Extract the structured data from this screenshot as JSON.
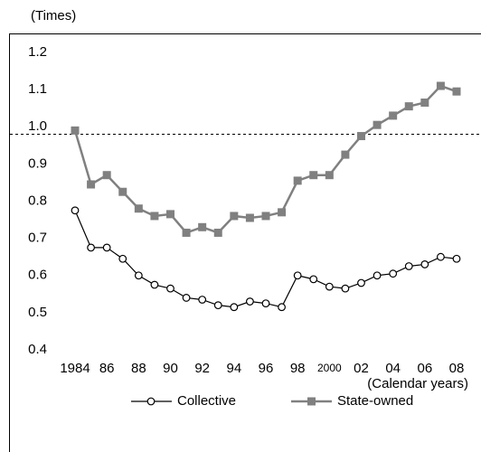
{
  "chart_data": {
    "type": "line",
    "y_label": "(Times)",
    "x_label": "(Calendar years)",
    "categories": [
      "1984",
      null,
      "86",
      null,
      "88",
      null,
      "90",
      null,
      "92",
      null,
      "94",
      null,
      "96",
      null,
      "98",
      null,
      "2000",
      null,
      "02",
      null,
      "04",
      null,
      "06",
      null,
      "08"
    ],
    "series": [
      {
        "name": "Collective",
        "color": "#000000",
        "marker": "circle",
        "values": [
          0.775,
          0.675,
          0.675,
          0.645,
          0.6,
          0.575,
          0.565,
          0.54,
          0.535,
          0.52,
          0.515,
          0.53,
          0.525,
          0.515,
          0.6,
          0.59,
          0.57,
          0.565,
          0.58,
          0.6,
          0.605,
          0.625,
          0.63,
          0.65,
          0.645
        ]
      },
      {
        "name": "State-owned",
        "color": "#808080",
        "marker": "square",
        "values": [
          0.99,
          0.845,
          0.87,
          0.825,
          0.78,
          0.76,
          0.765,
          0.715,
          0.73,
          0.715,
          0.76,
          0.755,
          0.76,
          0.77,
          0.855,
          0.87,
          0.87,
          0.925,
          0.975,
          1.005,
          1.03,
          1.055,
          1.065,
          1.11,
          1.095
        ]
      }
    ],
    "ylim": [
      0.4,
      1.2
    ],
    "yticks": [
      0.4,
      0.5,
      0.6,
      0.7,
      0.8,
      0.9,
      {
        "value": 1.0,
        "label": "1.0"
      },
      1.1,
      1.2
    ],
    "reference_line": 0.98,
    "grid": false,
    "legend": "bottom"
  }
}
